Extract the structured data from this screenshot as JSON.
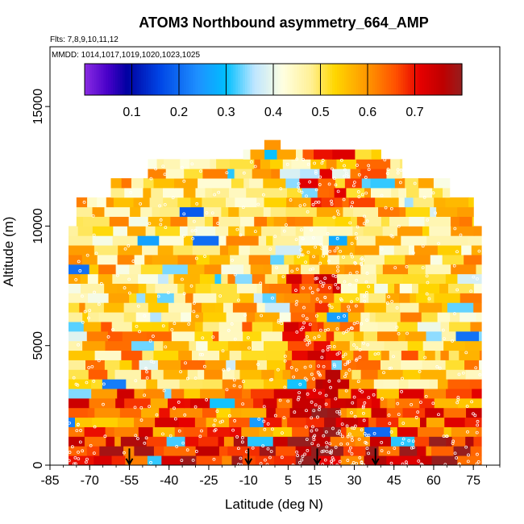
{
  "chart_data": {
    "type": "heatmap",
    "title": "ATOM3 Northbound asymmetry_664_AMP",
    "subtitle_flights": "Flts: 7,8,9,10,11,12",
    "subtitle_dates": "MMDD: 1014,1017,1019,1020,1023,1025",
    "xlabel": "Latitude (deg N)",
    "ylabel": "Altitude (m)",
    "xlim": [
      -85,
      85
    ],
    "ylim": [
      0,
      17500
    ],
    "x_ticks": [
      "-85",
      "-70",
      "-55",
      "-40",
      "-25",
      "-10",
      "5",
      "15",
      "30",
      "45",
      "60",
      "75"
    ],
    "y_ticks": [
      "0",
      "5000",
      "10000",
      "15000"
    ],
    "colorbar": {
      "min": 0.0,
      "max": 0.8,
      "ticks": [
        "0.1",
        "0.2",
        "0.3",
        "0.4",
        "0.5",
        "0.6",
        "0.7"
      ]
    },
    "arrows_latitude": [
      -55,
      -10,
      16,
      38
    ],
    "grid": false,
    "legend": "top"
  }
}
